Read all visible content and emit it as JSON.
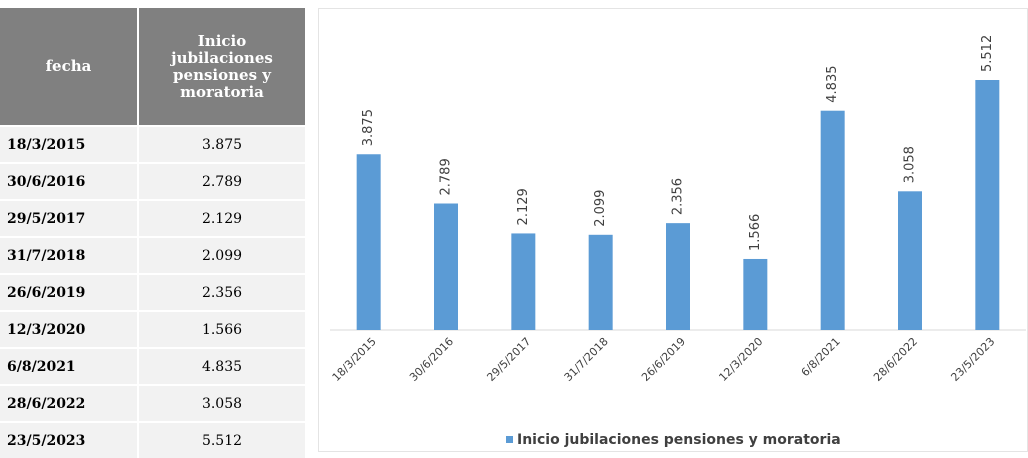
{
  "table": {
    "headers": [
      "fecha",
      "Inicio jubilaciones pensiones y moratoria"
    ],
    "rows": [
      [
        "18/3/2015",
        "3.875"
      ],
      [
        "30/6/2016",
        "2.789"
      ],
      [
        "29/5/2017",
        "2.129"
      ],
      [
        "31/7/2018",
        "2.099"
      ],
      [
        "26/6/2019",
        "2.356"
      ],
      [
        "12/3/2020",
        "1.566"
      ],
      [
        "6/8/2021",
        "4.835"
      ],
      [
        "28/6/2022",
        "3.058"
      ],
      [
        "23/5/2023",
        "5.512"
      ]
    ]
  },
  "chart_data": {
    "type": "bar",
    "categories": [
      "18/3/2015",
      "30/6/2016",
      "29/5/2017",
      "31/7/2018",
      "26/6/2019",
      "12/3/2020",
      "6/8/2021",
      "28/6/2022",
      "23/5/2023"
    ],
    "series": [
      {
        "name": "Inicio jubilaciones pensiones y moratoria",
        "color": "#5b9bd5",
        "values": [
          3875,
          2789,
          2129,
          2099,
          2356,
          1566,
          4835,
          3058,
          5512
        ],
        "value_labels": [
          "3.875",
          "2.789",
          "2.129",
          "2.099",
          "2.356",
          "1.566",
          "4.835",
          "3.058",
          "5.512"
        ]
      }
    ],
    "legend": "bottom"
  }
}
